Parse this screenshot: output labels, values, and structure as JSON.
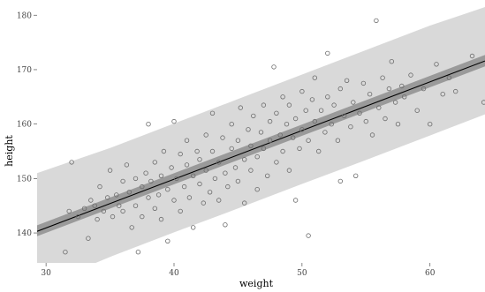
{
  "chart_data": {
    "type": "scatter",
    "title": "",
    "xlabel": "weight",
    "ylabel": "height",
    "xlim": [
      29.3,
      64.3
    ],
    "ylim": [
      134.5,
      181.5
    ],
    "xticks": [
      30,
      40,
      50,
      60
    ],
    "yticks": [
      140,
      150,
      160,
      170,
      180
    ],
    "grid": false,
    "colors": {
      "prediction_interval": "#d9d9d9",
      "mean_interval": "#9a9a9a",
      "mean_line": "#000000",
      "points": "#6b6b6b"
    },
    "mean_line": {
      "x": [
        29.3,
        64.3
      ],
      "y": [
        140.3,
        171.6
      ]
    },
    "mean_interval": {
      "x": [
        29.3,
        64.3
      ],
      "lower": [
        139.4,
        170.6
      ],
      "upper": [
        141.4,
        172.7
      ]
    },
    "prediction_interval": {
      "x": [
        29.3,
        35,
        40,
        45,
        50,
        55,
        60,
        64.3
      ],
      "lower": [
        130.0,
        135.6,
        140.1,
        144.5,
        149.0,
        153.4,
        157.9,
        161.8
      ],
      "upper": [
        151.0,
        155.6,
        160.1,
        164.6,
        169.1,
        173.6,
        178.1,
        181.5
      ]
    },
    "points": [
      [
        31.5,
        136.5
      ],
      [
        31.8,
        144.0
      ],
      [
        32.0,
        153.0
      ],
      [
        32.5,
        143.0
      ],
      [
        33.0,
        144.5
      ],
      [
        33.3,
        139.0
      ],
      [
        33.5,
        146.0
      ],
      [
        33.8,
        145.0
      ],
      [
        34.0,
        142.5
      ],
      [
        34.2,
        148.5
      ],
      [
        34.5,
        144.0
      ],
      [
        34.8,
        146.5
      ],
      [
        35.0,
        151.5
      ],
      [
        35.2,
        143.0
      ],
      [
        35.5,
        147.0
      ],
      [
        35.7,
        145.0
      ],
      [
        36.0,
        149.5
      ],
      [
        36.0,
        144.0
      ],
      [
        36.3,
        152.5
      ],
      [
        36.5,
        147.5
      ],
      [
        36.7,
        141.0
      ],
      [
        37.0,
        150.0
      ],
      [
        37.0,
        145.0
      ],
      [
        37.2,
        136.5
      ],
      [
        37.5,
        148.5
      ],
      [
        37.5,
        143.0
      ],
      [
        37.8,
        151.0
      ],
      [
        38.0,
        146.5
      ],
      [
        38.0,
        160.0
      ],
      [
        38.2,
        149.5
      ],
      [
        38.5,
        153.0
      ],
      [
        38.5,
        144.5
      ],
      [
        38.8,
        147.0
      ],
      [
        39.0,
        150.5
      ],
      [
        39.0,
        142.5
      ],
      [
        39.2,
        155.0
      ],
      [
        39.5,
        148.0
      ],
      [
        39.5,
        138.5
      ],
      [
        39.8,
        152.0
      ],
      [
        40.0,
        146.0
      ],
      [
        40.0,
        160.5
      ],
      [
        40.2,
        150.0
      ],
      [
        40.5,
        154.5
      ],
      [
        40.5,
        144.0
      ],
      [
        40.8,
        148.5
      ],
      [
        41.0,
        152.5
      ],
      [
        41.0,
        157.0
      ],
      [
        41.2,
        146.5
      ],
      [
        41.5,
        150.5
      ],
      [
        41.5,
        141.0
      ],
      [
        41.8,
        155.0
      ],
      [
        42.0,
        149.0
      ],
      [
        42.0,
        153.5
      ],
      [
        42.3,
        145.5
      ],
      [
        42.5,
        158.0
      ],
      [
        42.5,
        151.5
      ],
      [
        42.8,
        147.5
      ],
      [
        43.0,
        162.0
      ],
      [
        43.0,
        155.0
      ],
      [
        43.2,
        150.0
      ],
      [
        43.5,
        146.0
      ],
      [
        43.5,
        153.0
      ],
      [
        43.8,
        157.5
      ],
      [
        44.0,
        151.0
      ],
      [
        44.0,
        141.5
      ],
      [
        44.2,
        148.5
      ],
      [
        44.5,
        155.5
      ],
      [
        44.5,
        160.0
      ],
      [
        44.8,
        152.0
      ],
      [
        45.0,
        149.5
      ],
      [
        45.0,
        157.0
      ],
      [
        45.2,
        163.0
      ],
      [
        45.5,
        153.5
      ],
      [
        45.5,
        145.5
      ],
      [
        45.8,
        159.0
      ],
      [
        46.0,
        151.5
      ],
      [
        46.0,
        156.0
      ],
      [
        46.2,
        161.5
      ],
      [
        46.5,
        154.0
      ],
      [
        46.5,
        148.0
      ],
      [
        46.8,
        158.5
      ],
      [
        47.0,
        163.5
      ],
      [
        47.0,
        155.5
      ],
      [
        47.3,
        150.5
      ],
      [
        47.5,
        160.5
      ],
      [
        47.5,
        157.0
      ],
      [
        47.8,
        170.5
      ],
      [
        48.0,
        153.0
      ],
      [
        48.0,
        162.0
      ],
      [
        48.3,
        158.0
      ],
      [
        48.5,
        165.0
      ],
      [
        48.5,
        155.0
      ],
      [
        48.8,
        160.0
      ],
      [
        49.0,
        151.5
      ],
      [
        49.0,
        163.5
      ],
      [
        49.3,
        157.5
      ],
      [
        49.5,
        146.0
      ],
      [
        49.5,
        161.0
      ],
      [
        49.8,
        155.5
      ],
      [
        50.0,
        159.0
      ],
      [
        50.0,
        166.0
      ],
      [
        50.3,
        162.5
      ],
      [
        50.5,
        139.5
      ],
      [
        50.5,
        157.0
      ],
      [
        50.8,
        164.5
      ],
      [
        51.0,
        168.5
      ],
      [
        51.0,
        160.5
      ],
      [
        51.3,
        155.0
      ],
      [
        51.5,
        162.5
      ],
      [
        51.8,
        158.5
      ],
      [
        52.0,
        165.0
      ],
      [
        52.0,
        173.0
      ],
      [
        52.3,
        160.0
      ],
      [
        52.5,
        163.5
      ],
      [
        52.8,
        157.0
      ],
      [
        53.0,
        166.5
      ],
      [
        53.0,
        149.5
      ],
      [
        53.3,
        161.5
      ],
      [
        53.5,
        168.0
      ],
      [
        53.8,
        159.5
      ],
      [
        54.0,
        164.0
      ],
      [
        54.2,
        150.5
      ],
      [
        54.5,
        162.0
      ],
      [
        54.8,
        167.5
      ],
      [
        55.0,
        160.5
      ],
      [
        55.3,
        165.5
      ],
      [
        55.5,
        158.0
      ],
      [
        55.8,
        179.0
      ],
      [
        56.0,
        163.0
      ],
      [
        56.3,
        168.5
      ],
      [
        56.5,
        161.0
      ],
      [
        56.8,
        166.5
      ],
      [
        57.0,
        171.5
      ],
      [
        57.3,
        164.0
      ],
      [
        57.5,
        160.0
      ],
      [
        57.8,
        167.0
      ],
      [
        58.0,
        165.0
      ],
      [
        58.5,
        169.0
      ],
      [
        59.0,
        162.5
      ],
      [
        59.5,
        166.5
      ],
      [
        60.0,
        160.0
      ],
      [
        60.5,
        171.0
      ],
      [
        61.0,
        165.5
      ],
      [
        61.5,
        168.5
      ],
      [
        62.0,
        166.0
      ],
      [
        63.3,
        172.5
      ],
      [
        64.2,
        164.0
      ]
    ]
  }
}
